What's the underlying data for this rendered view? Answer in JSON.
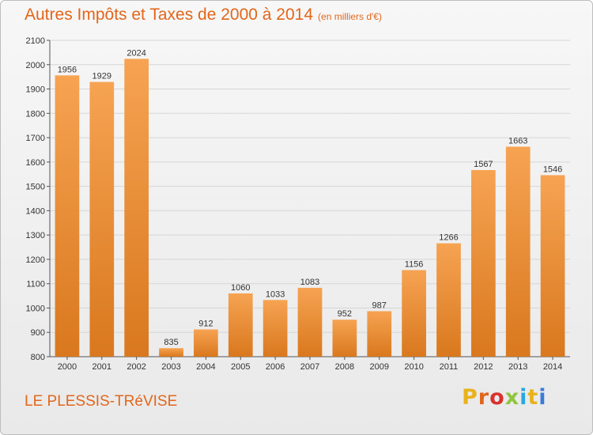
{
  "header": {
    "title": "Autres Impôts et Taxes de 2000 à 2014",
    "subtitle": "(en milliers d'€)"
  },
  "footer": {
    "place": "LE PLESSIS-TRéVISE",
    "logo_text": "Proxiti"
  },
  "colors": {
    "accent": "#e2661a",
    "bar_top": "#f6a352",
    "bar_bottom": "#d9781e",
    "logo_letters": [
      "#e8b21c",
      "#e2661a",
      "#d9312b",
      "#8fc43e",
      "#29a8e0",
      "#e8b21c",
      "#3a7bd5"
    ]
  },
  "chart_data": {
    "type": "bar",
    "title": "Autres Impôts et Taxes de 2000 à 2014",
    "subtitle": "(en milliers d'€)",
    "xlabel": "",
    "ylabel": "",
    "categories": [
      "2000",
      "2001",
      "2002",
      "2003",
      "2004",
      "2005",
      "2006",
      "2007",
      "2008",
      "2009",
      "2010",
      "2011",
      "2012",
      "2013",
      "2014"
    ],
    "values": [
      1956,
      1929,
      2024,
      835,
      912,
      1060,
      1033,
      1083,
      952,
      987,
      1156,
      1266,
      1567,
      1663,
      1546
    ],
    "ylim": [
      800,
      2100
    ],
    "yticks": [
      800,
      900,
      1000,
      1100,
      1200,
      1300,
      1400,
      1500,
      1600,
      1700,
      1800,
      1900,
      2000,
      2100
    ],
    "grid": true,
    "data_labels": true
  }
}
